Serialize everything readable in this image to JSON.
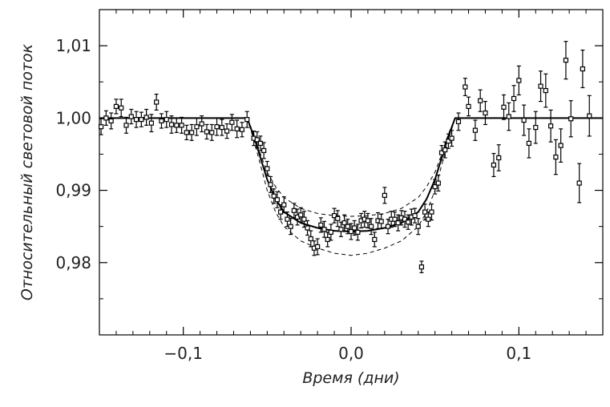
{
  "chart_data": {
    "type": "scatter",
    "xlabel": "Время  (дни)",
    "ylabel": "Относительный  световой  поток",
    "xlim": [
      -0.15,
      0.15
    ],
    "ylim": [
      0.97,
      1.015
    ],
    "xticks": [
      {
        "value": -0.1,
        "label": "−0,1"
      },
      {
        "value": 0.0,
        "label": "0,0"
      },
      {
        "value": 0.1,
        "label": "0,1"
      }
    ],
    "yticks": [
      {
        "value": 0.98,
        "label": "0,98"
      },
      {
        "value": 0.99,
        "label": "0,99"
      },
      {
        "value": 1.0,
        "label": "1,00"
      },
      {
        "value": 1.01,
        "label": "1,01"
      }
    ],
    "xminorticks": [
      -0.14,
      -0.13,
      -0.12,
      -0.11,
      -0.09,
      -0.08,
      -0.07,
      -0.06,
      -0.05,
      -0.04,
      -0.03,
      -0.02,
      -0.01,
      0.01,
      0.02,
      0.03,
      0.04,
      0.05,
      0.06,
      0.07,
      0.08,
      0.09,
      0.11,
      0.12,
      0.13,
      0.14
    ],
    "yminorticks": [
      0.975,
      0.985,
      0.995,
      1.005
    ],
    "color": "#000000",
    "x": [
      -0.149,
      -0.146,
      -0.143,
      -0.14,
      -0.137,
      -0.134,
      -0.131,
      -0.128,
      -0.125,
      -0.122,
      -0.119,
      -0.116,
      -0.113,
      -0.11,
      -0.107,
      -0.104,
      -0.101,
      -0.098,
      -0.095,
      -0.092,
      -0.089,
      -0.086,
      -0.083,
      -0.08,
      -0.077,
      -0.074,
      -0.071,
      -0.068,
      -0.065,
      -0.062,
      -0.058,
      -0.056,
      -0.054,
      -0.052,
      -0.05,
      -0.048,
      -0.046,
      -0.044,
      -0.042,
      -0.04,
      -0.038,
      -0.036,
      -0.034,
      -0.032,
      -0.03,
      -0.028,
      -0.026,
      -0.024,
      -0.022,
      -0.02,
      -0.018,
      -0.016,
      -0.014,
      -0.012,
      -0.01,
      -0.008,
      -0.006,
      -0.004,
      -0.002,
      0.0,
      0.002,
      0.004,
      0.006,
      0.008,
      0.01,
      0.012,
      0.014,
      0.016,
      0.018,
      0.02,
      0.022,
      0.024,
      0.026,
      0.028,
      0.03,
      0.032,
      0.034,
      0.036,
      0.038,
      0.04,
      0.042,
      0.044,
      0.046,
      0.048,
      0.05,
      0.052,
      0.054,
      0.056,
      0.058,
      0.06,
      0.064,
      0.068,
      0.07,
      0.074,
      0.077,
      0.08,
      0.085,
      0.088,
      0.091,
      0.094,
      0.097,
      0.1,
      0.103,
      0.106,
      0.11,
      0.113,
      0.116,
      0.119,
      0.122,
      0.125,
      0.128,
      0.131,
      0.136,
      0.138,
      0.142
    ],
    "values": [
      0.9988,
      1.0,
      0.9996,
      1.0016,
      1.0014,
      0.999,
      1.0002,
      0.9998,
      0.9998,
      1.0001,
      0.9993,
      1.0022,
      0.9996,
      0.9998,
      0.9991,
      0.999,
      0.999,
      0.998,
      0.998,
      0.9988,
      0.9992,
      0.9981,
      0.998,
      0.9988,
      0.9987,
      0.9982,
      0.9994,
      0.9985,
      0.9984,
      0.9998,
      0.9972,
      0.997,
      0.9965,
      0.9955,
      0.993,
      0.9908,
      0.9892,
      0.9887,
      0.987,
      0.988,
      0.986,
      0.985,
      0.9872,
      0.9863,
      0.9866,
      0.986,
      0.9848,
      0.9833,
      0.982,
      0.9822,
      0.9852,
      0.9846,
      0.9832,
      0.9842,
      0.9865,
      0.9861,
      0.9846,
      0.9855,
      0.985,
      0.9843,
      0.9848,
      0.9842,
      0.9858,
      0.986,
      0.9858,
      0.985,
      0.9832,
      0.9858,
      0.9857,
      0.9893,
      0.985,
      0.986,
      0.986,
      0.9855,
      0.9862,
      0.986,
      0.9856,
      0.9863,
      0.9865,
      0.985,
      0.9794,
      0.987,
      0.986,
      0.987,
      0.9905,
      0.991,
      0.9952,
      0.9956,
      0.9968,
      0.9972,
      0.9995,
      1.0043,
      1.0016,
      0.9983,
      1.0024,
      1.0007,
      0.9935,
      0.9945,
      1.0015,
      1.0002,
      1.0027,
      1.0052,
      0.9997,
      0.9965,
      0.9987,
      1.0044,
      1.0038,
      0.9989,
      0.9946,
      0.9962,
      1.008,
      0.9999,
      0.991,
      1.0068,
      1.0003
    ],
    "errors": [
      0.0011,
      0.001,
      0.0011,
      0.001,
      0.0012,
      0.0011,
      0.001,
      0.0011,
      0.001,
      0.0011,
      0.0012,
      0.0011,
      0.001,
      0.0011,
      0.0012,
      0.001,
      0.0011,
      0.001,
      0.0011,
      0.0012,
      0.0011,
      0.001,
      0.0011,
      0.0012,
      0.0011,
      0.001,
      0.0011,
      0.0012,
      0.001,
      0.0011,
      0.001,
      0.0011,
      0.001,
      0.0011,
      0.001,
      0.0011,
      0.001,
      0.0011,
      0.001,
      0.0011,
      0.001,
      0.0011,
      0.001,
      0.0011,
      0.001,
      0.0011,
      0.001,
      0.0011,
      0.001,
      0.0011,
      0.001,
      0.0011,
      0.001,
      0.0011,
      0.001,
      0.0011,
      0.001,
      0.0011,
      0.001,
      0.0011,
      0.001,
      0.0011,
      0.001,
      0.0011,
      0.001,
      0.0011,
      0.001,
      0.0011,
      0.001,
      0.0011,
      0.001,
      0.0011,
      0.001,
      0.0011,
      0.001,
      0.0011,
      0.001,
      0.0011,
      0.001,
      0.0011,
      0.0008,
      0.0011,
      0.001,
      0.0011,
      0.001,
      0.0011,
      0.001,
      0.0011,
      0.001,
      0.0011,
      0.0012,
      0.0012,
      0.0013,
      0.0014,
      0.0015,
      0.0016,
      0.0016,
      0.0018,
      0.0017,
      0.0019,
      0.0018,
      0.002,
      0.0021,
      0.002,
      0.0022,
      0.0021,
      0.0023,
      0.0022,
      0.0024,
      0.0023,
      0.0026,
      0.0025,
      0.0027,
      0.0026,
      0.0028
    ],
    "lines": [
      {
        "dashed": false,
        "x": [
          -0.15,
          -0.062,
          -0.058,
          -0.054,
          -0.05,
          -0.045,
          -0.04,
          -0.03,
          -0.02,
          -0.01,
          0.0,
          0.01,
          0.02,
          0.03,
          0.04,
          0.045,
          0.05,
          0.054,
          0.058,
          0.062,
          0.15
        ],
        "values": [
          1.0,
          1.0,
          0.9975,
          0.9945,
          0.9915,
          0.9888,
          0.987,
          0.9855,
          0.9848,
          0.9844,
          0.9843,
          0.9844,
          0.9848,
          0.9855,
          0.987,
          0.9888,
          0.9915,
          0.9945,
          0.9975,
          1.0,
          1.0
        ]
      },
      {
        "dashed": true,
        "x": [
          -0.062,
          -0.058,
          -0.054,
          -0.05,
          -0.045,
          -0.04,
          -0.03,
          -0.02,
          -0.01,
          0.0,
          0.01,
          0.02,
          0.03,
          0.04,
          0.045,
          0.05,
          0.054,
          0.058,
          0.062
        ],
        "values": [
          1.0,
          0.9978,
          0.995,
          0.9925,
          0.9905,
          0.989,
          0.9875,
          0.9868,
          0.9865,
          0.9864,
          0.9865,
          0.9868,
          0.9875,
          0.989,
          0.9905,
          0.9925,
          0.995,
          0.9978,
          1.0
        ]
      },
      {
        "dashed": true,
        "x": [
          -0.062,
          -0.058,
          -0.054,
          -0.05,
          -0.045,
          -0.04,
          -0.03,
          -0.02,
          -0.01,
          0.0,
          0.01,
          0.02,
          0.03,
          0.04,
          0.045,
          0.05,
          0.054,
          0.058,
          0.062
        ],
        "values": [
          1.0,
          0.997,
          0.9935,
          0.99,
          0.987,
          0.985,
          0.983,
          0.982,
          0.9813,
          0.981,
          0.9813,
          0.982,
          0.983,
          0.985,
          0.987,
          0.99,
          0.9935,
          0.997,
          1.0
        ]
      }
    ]
  }
}
